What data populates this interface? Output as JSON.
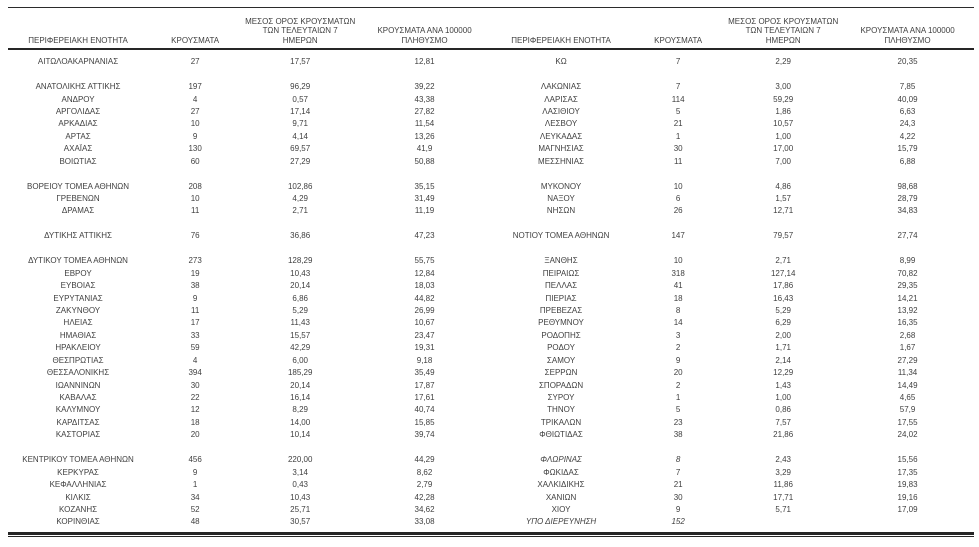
{
  "colors": {
    "text": "#3f3f3f",
    "rule": "#262626",
    "background": "#ffffff"
  },
  "columns": {
    "region": "ΠΕΡΙΦΕΡΕΙΑΚΗ ΕΝΟΤΗΤΑ",
    "cases": "ΚΡΟΥΣΜΑΤΑ",
    "avg7": "ΜΕΣΟΣ ΟΡΟΣ ΚΡΟΥΣΜΑΤΩΝ\nΤΩΝ ΤΕΛΕΥΤΑΙΩΝ 7\nΗΜΕΡΩΝ",
    "per100k": "ΚΡΟΥΣΜΑΤΑ ΑΝΑ 100000\nΠΛΗΘΥΣΜΟ"
  },
  "left_table": {
    "rows": [
      {
        "region": "ΑΙΤΩΛΟΑΚΑΡΝΑΝΙΑΣ",
        "cases": "27",
        "avg7": "17,57",
        "per100k": "12,81"
      },
      {
        "blank": true
      },
      {
        "region": "ΑΝΑΤΟΛΙΚΗΣ ΑΤΤΙΚΗΣ",
        "cases": "197",
        "avg7": "96,29",
        "per100k": "39,22"
      },
      {
        "region": "ΑΝΔΡΟΥ",
        "cases": "4",
        "avg7": "0,57",
        "per100k": "43,38"
      },
      {
        "region": "ΑΡΓΟΛΙΔΑΣ",
        "cases": "27",
        "avg7": "17,14",
        "per100k": "27,82"
      },
      {
        "region": "ΑΡΚΑΔΙΑΣ",
        "cases": "10",
        "avg7": "9,71",
        "per100k": "11,54"
      },
      {
        "region": "ΑΡΤΑΣ",
        "cases": "9",
        "avg7": "4,14",
        "per100k": "13,26"
      },
      {
        "region": "ΑΧΑΪΑΣ",
        "cases": "130",
        "avg7": "69,57",
        "per100k": "41,9"
      },
      {
        "region": "ΒΟΙΩΤΙΑΣ",
        "cases": "60",
        "avg7": "27,29",
        "per100k": "50,88"
      },
      {
        "blank": true
      },
      {
        "region": "ΒΟΡΕΙΟΥ ΤΟΜΕΑ ΑΘΗΝΩΝ",
        "cases": "208",
        "avg7": "102,86",
        "per100k": "35,15"
      },
      {
        "region": "ΓΡΕΒΕΝΩΝ",
        "cases": "10",
        "avg7": "4,29",
        "per100k": "31,49"
      },
      {
        "region": "ΔΡΑΜΑΣ",
        "cases": "11",
        "avg7": "2,71",
        "per100k": "11,19"
      },
      {
        "blank": true
      },
      {
        "region": "ΔΥΤΙΚΗΣ ΑΤΤΙΚΗΣ",
        "cases": "76",
        "avg7": "36,86",
        "per100k": "47,23"
      },
      {
        "blank": true
      },
      {
        "region": "ΔΥΤΙΚΟΥ ΤΟΜΕΑ ΑΘΗΝΩΝ",
        "cases": "273",
        "avg7": "128,29",
        "per100k": "55,75"
      },
      {
        "region": "ΕΒΡΟΥ",
        "cases": "19",
        "avg7": "10,43",
        "per100k": "12,84"
      },
      {
        "region": "ΕΥΒΟΙΑΣ",
        "cases": "38",
        "avg7": "20,14",
        "per100k": "18,03"
      },
      {
        "region": "ΕΥΡΥΤΑΝΙΑΣ",
        "cases": "9",
        "avg7": "6,86",
        "per100k": "44,82"
      },
      {
        "region": "ΖΑΚΥΝΘΟΥ",
        "cases": "11",
        "avg7": "5,29",
        "per100k": "26,99"
      },
      {
        "region": "ΗΛΕΙΑΣ",
        "cases": "17",
        "avg7": "11,43",
        "per100k": "10,67"
      },
      {
        "region": "ΗΜΑΘΙΑΣ",
        "cases": "33",
        "avg7": "15,57",
        "per100k": "23,47"
      },
      {
        "region": "ΗΡΑΚΛΕΙΟΥ",
        "cases": "59",
        "avg7": "42,29",
        "per100k": "19,31"
      },
      {
        "region": "ΘΕΣΠΡΩΤΙΑΣ",
        "cases": "4",
        "avg7": "6,00",
        "per100k": "9,18"
      },
      {
        "region": "ΘΕΣΣΑΛΟΝΙΚΗΣ",
        "cases": "394",
        "avg7": "185,29",
        "per100k": "35,49"
      },
      {
        "region": "ΙΩΑΝΝΙΝΩΝ",
        "cases": "30",
        "avg7": "20,14",
        "per100k": "17,87"
      },
      {
        "region": "ΚΑΒΑΛΑΣ",
        "cases": "22",
        "avg7": "16,14",
        "per100k": "17,61"
      },
      {
        "region": "ΚΑΛΥΜΝΟΥ",
        "cases": "12",
        "avg7": "8,29",
        "per100k": "40,74"
      },
      {
        "region": "ΚΑΡΔΙΤΣΑΣ",
        "cases": "18",
        "avg7": "14,00",
        "per100k": "15,85"
      },
      {
        "region": "ΚΑΣΤΟΡΙΑΣ",
        "cases": "20",
        "avg7": "10,14",
        "per100k": "39,74"
      },
      {
        "blank": true
      },
      {
        "region": "ΚΕΝΤΡΙΚΟΥ ΤΟΜΕΑ ΑΘΗΝΩΝ",
        "cases": "456",
        "avg7": "220,00",
        "per100k": "44,29"
      },
      {
        "region": "ΚΕΡΚΥΡΑΣ",
        "cases": "9",
        "avg7": "3,14",
        "per100k": "8,62"
      },
      {
        "region": "ΚΕΦΑΛΛΗΝΙΑΣ",
        "cases": "1",
        "avg7": "0,43",
        "per100k": "2,79"
      },
      {
        "region": "ΚΙΛΚΙΣ",
        "cases": "34",
        "avg7": "10,43",
        "per100k": "42,28"
      },
      {
        "region": "ΚΟΖΑΝΗΣ",
        "cases": "52",
        "avg7": "25,71",
        "per100k": "34,62"
      },
      {
        "region": "ΚΟΡΙΝΘΙΑΣ",
        "cases": "48",
        "avg7": "30,57",
        "per100k": "33,08"
      }
    ]
  },
  "right_table": {
    "rows": [
      {
        "region": "ΚΩ",
        "cases": "7",
        "avg7": "2,29",
        "per100k": "20,35"
      },
      {
        "blank": true
      },
      {
        "region": "ΛΑΚΩΝΙΑΣ",
        "cases": "7",
        "avg7": "3,00",
        "per100k": "7,85"
      },
      {
        "region": "ΛΑΡΙΣΑΣ",
        "cases": "114",
        "avg7": "59,29",
        "per100k": "40,09"
      },
      {
        "region": "ΛΑΣΙΘΙΟΥ",
        "cases": "5",
        "avg7": "1,86",
        "per100k": "6,63"
      },
      {
        "region": "ΛΕΣΒΟΥ",
        "cases": "21",
        "avg7": "10,57",
        "per100k": "24,3"
      },
      {
        "region": "ΛΕΥΚΑΔΑΣ",
        "cases": "1",
        "avg7": "1,00",
        "per100k": "4,22"
      },
      {
        "region": "ΜΑΓΝΗΣΙΑΣ",
        "cases": "30",
        "avg7": "17,00",
        "per100k": "15,79"
      },
      {
        "region": "ΜΕΣΣΗΝΙΑΣ",
        "cases": "11",
        "avg7": "7,00",
        "per100k": "6,88"
      },
      {
        "blank": true
      },
      {
        "region": "ΜΥΚΟΝΟΥ",
        "cases": "10",
        "avg7": "4,86",
        "per100k": "98,68"
      },
      {
        "region": "ΝΑΞΟΥ",
        "cases": "6",
        "avg7": "1,57",
        "per100k": "28,79"
      },
      {
        "region": "ΝΗΣΩΝ",
        "cases": "26",
        "avg7": "12,71",
        "per100k": "34,83"
      },
      {
        "blank": true
      },
      {
        "region": "ΝΟΤΙΟΥ ΤΟΜΕΑ ΑΘΗΝΩΝ",
        "cases": "147",
        "avg7": "79,57",
        "per100k": "27,74"
      },
      {
        "blank": true
      },
      {
        "region": "ΞΑΝΘΗΣ",
        "cases": "10",
        "avg7": "2,71",
        "per100k": "8,99"
      },
      {
        "region": "ΠΕΙΡΑΙΩΣ",
        "cases": "318",
        "avg7": "127,14",
        "per100k": "70,82"
      },
      {
        "region": "ΠΕΛΛΑΣ",
        "cases": "41",
        "avg7": "17,86",
        "per100k": "29,35"
      },
      {
        "region": "ΠΙΕΡΙΑΣ",
        "cases": "18",
        "avg7": "16,43",
        "per100k": "14,21"
      },
      {
        "region": "ΠΡΕΒΕΖΑΣ",
        "cases": "8",
        "avg7": "5,29",
        "per100k": "13,92"
      },
      {
        "region": "ΡΕΘΥΜΝΟΥ",
        "cases": "14",
        "avg7": "6,29",
        "per100k": "16,35"
      },
      {
        "region": "ΡΟΔΟΠΗΣ",
        "cases": "3",
        "avg7": "2,00",
        "per100k": "2,68"
      },
      {
        "region": "ΡΟΔΟΥ",
        "cases": "2",
        "avg7": "1,71",
        "per100k": "1,67"
      },
      {
        "region": "ΣΑΜΟΥ",
        "cases": "9",
        "avg7": "2,14",
        "per100k": "27,29"
      },
      {
        "region": "ΣΕΡΡΩΝ",
        "cases": "20",
        "avg7": "12,29",
        "per100k": "11,34"
      },
      {
        "region": "ΣΠΟΡΑΔΩΝ",
        "cases": "2",
        "avg7": "1,43",
        "per100k": "14,49"
      },
      {
        "region": "ΣΥΡΟΥ",
        "cases": "1",
        "avg7": "1,00",
        "per100k": "4,65"
      },
      {
        "region": "ΤΗΝΟΥ",
        "cases": "5",
        "avg7": "0,86",
        "per100k": "57,9"
      },
      {
        "region": "ΤΡΙΚΑΛΩΝ",
        "cases": "23",
        "avg7": "7,57",
        "per100k": "17,55"
      },
      {
        "region": "ΦΘΙΩΤΙΔΑΣ",
        "cases": "38",
        "avg7": "21,86",
        "per100k": "24,02"
      },
      {
        "blank": true
      },
      {
        "region": "ΦΛΩΡΙΝΑΣ",
        "cases": "8",
        "avg7": "2,43",
        "per100k": "15,56",
        "italic": true
      },
      {
        "region": "ΦΩΚΙΔΑΣ",
        "cases": "7",
        "avg7": "3,29",
        "per100k": "17,35"
      },
      {
        "region": "ΧΑΛΚΙΔΙΚΗΣ",
        "cases": "21",
        "avg7": "11,86",
        "per100k": "19,83"
      },
      {
        "region": "ΧΑΝΙΩΝ",
        "cases": "30",
        "avg7": "17,71",
        "per100k": "19,16"
      },
      {
        "region": "ΧΙΟΥ",
        "cases": "9",
        "avg7": "5,71",
        "per100k": "17,09"
      },
      {
        "region": "ΥΠΟ ΔΙΕΡΕΥΝΗΣΗ",
        "cases": "152",
        "avg7": "",
        "per100k": "",
        "italic": true
      }
    ]
  }
}
